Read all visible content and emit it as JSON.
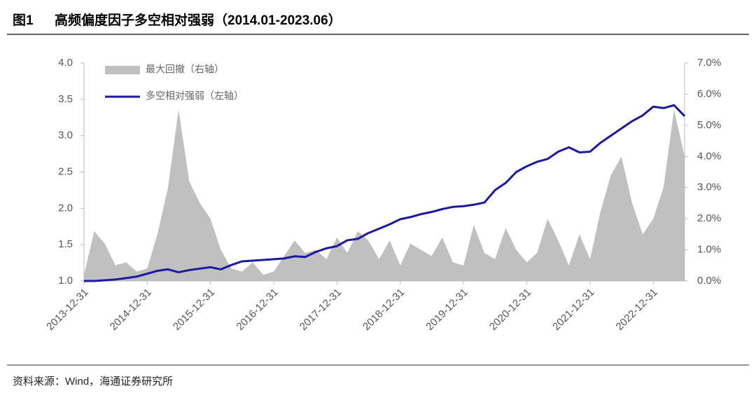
{
  "chart_data": {
    "type": "dual-axis-area-line",
    "figure_label": "图1",
    "title": "高频偏度因子多空相对强弱（2014.01-2023.06）",
    "source": "资料来源：Wind，海通证券研究所",
    "x": [
      "2013-12-31",
      "2014-02-28",
      "2014-04-30",
      "2014-06-30",
      "2014-08-31",
      "2014-10-31",
      "2014-12-31",
      "2015-02-28",
      "2015-04-30",
      "2015-06-30",
      "2015-08-31",
      "2015-10-31",
      "2015-12-31",
      "2016-02-29",
      "2016-04-30",
      "2016-06-30",
      "2016-08-31",
      "2016-10-31",
      "2016-12-31",
      "2017-02-28",
      "2017-04-30",
      "2017-06-30",
      "2017-08-31",
      "2017-10-31",
      "2017-12-31",
      "2018-02-28",
      "2018-04-30",
      "2018-06-30",
      "2018-08-31",
      "2018-10-31",
      "2018-12-31",
      "2019-02-28",
      "2019-04-30",
      "2019-06-30",
      "2019-08-31",
      "2019-10-31",
      "2019-12-31",
      "2020-02-29",
      "2020-04-30",
      "2020-06-30",
      "2020-08-31",
      "2020-10-31",
      "2020-12-31",
      "2021-02-28",
      "2021-04-30",
      "2021-06-30",
      "2021-08-31",
      "2021-10-31",
      "2021-12-31",
      "2022-02-28",
      "2022-04-30",
      "2022-06-30",
      "2022-08-31",
      "2022-10-31",
      "2022-12-31",
      "2023-02-28",
      "2023-04-30",
      "2023-06-30"
    ],
    "xlim": [
      "2013-12-31",
      "2023-06-30"
    ],
    "xticks": [
      "2013-12-31",
      "2014-12-31",
      "2015-12-31",
      "2016-12-31",
      "2017-12-31",
      "2018-12-31",
      "2019-12-31",
      "2020-12-31",
      "2021-12-31",
      "2022-12-31"
    ],
    "series": [
      {
        "name": "最大回撤（右轴）",
        "color": "#c0c0c0",
        "axis": "y2",
        "values": [
          0.2,
          1.6,
          1.2,
          0.5,
          0.6,
          0.3,
          0.4,
          1.5,
          3.0,
          5.5,
          3.2,
          2.5,
          2.0,
          1.0,
          0.4,
          0.3,
          0.6,
          0.2,
          0.3,
          0.8,
          1.3,
          0.9,
          1.0,
          0.7,
          1.4,
          0.9,
          1.6,
          1.3,
          0.7,
          1.3,
          0.5,
          1.2,
          1.0,
          0.8,
          1.4,
          0.6,
          0.5,
          1.8,
          0.9,
          0.7,
          1.7,
          1.0,
          0.6,
          0.9,
          2.0,
          1.3,
          0.5,
          1.5,
          0.7,
          2.2,
          3.4,
          4.0,
          2.5,
          1.5,
          2.0,
          3.0,
          5.5,
          4.0
        ]
      },
      {
        "name": "多空相对强弱（左轴）",
        "color": "#1a1aa0",
        "axis": "y",
        "values": [
          1.0,
          1.0,
          1.01,
          1.02,
          1.04,
          1.06,
          1.1,
          1.14,
          1.16,
          1.12,
          1.15,
          1.17,
          1.19,
          1.16,
          1.22,
          1.27,
          1.28,
          1.29,
          1.3,
          1.31,
          1.34,
          1.33,
          1.4,
          1.45,
          1.48,
          1.56,
          1.58,
          1.66,
          1.72,
          1.78,
          1.85,
          1.88,
          1.92,
          1.95,
          1.99,
          2.02,
          2.03,
          2.05,
          2.08,
          2.25,
          2.35,
          2.5,
          2.58,
          2.64,
          2.68,
          2.78,
          2.84,
          2.77,
          2.78,
          2.9,
          3.0,
          3.1,
          3.2,
          3.28,
          3.4,
          3.38,
          3.42,
          3.27
        ]
      }
    ],
    "ylim": [
      1,
      4
    ],
    "yticks": [
      {
        "value": 1,
        "label": "1.0"
      },
      1.5,
      {
        "value": 2,
        "label": "2.0"
      },
      2.5,
      {
        "value": 3,
        "label": "3.0"
      },
      3.5,
      {
        "value": 4,
        "label": "4.0"
      }
    ],
    "y2lim": [
      0,
      7
    ],
    "y2ticks": [
      {
        "value": 0,
        "label": "0.0%"
      },
      {
        "value": 1,
        "label": "1.0%"
      },
      {
        "value": 2,
        "label": "2.0%"
      },
      {
        "value": 3,
        "label": "3.0%"
      },
      {
        "value": 4,
        "label": "4.0%"
      },
      {
        "value": 5,
        "label": "5.0%"
      },
      {
        "value": 6,
        "label": "6.0%"
      },
      {
        "value": 7,
        "label": "7.0%"
      }
    ],
    "legend": "upper-left"
  }
}
